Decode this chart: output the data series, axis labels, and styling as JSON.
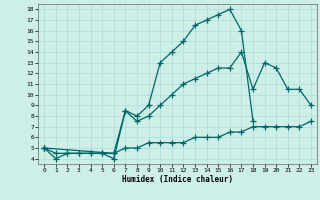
{
  "title": "",
  "xlabel": "Humidex (Indice chaleur)",
  "bg_color": "#ceeee8",
  "line_color": "#006666",
  "grid_color": "#aadddd",
  "xlim": [
    -0.5,
    23.5
  ],
  "ylim": [
    3.5,
    18.5
  ],
  "xticks": [
    0,
    1,
    2,
    3,
    4,
    5,
    6,
    7,
    8,
    9,
    10,
    11,
    12,
    13,
    14,
    15,
    16,
    17,
    18,
    19,
    20,
    21,
    22,
    23
  ],
  "yticks": [
    4,
    5,
    6,
    7,
    8,
    9,
    10,
    11,
    12,
    13,
    14,
    15,
    16,
    17,
    18
  ],
  "line1_x": [
    0,
    1,
    2,
    3,
    4,
    5,
    6,
    7,
    8,
    9,
    10,
    11,
    12,
    13,
    14,
    15,
    16,
    17,
    18
  ],
  "line1_y": [
    5,
    4,
    4.5,
    4.5,
    4.5,
    4.5,
    4,
    8.5,
    8,
    9,
    13,
    14,
    15,
    16.5,
    17,
    17.5,
    18,
    16,
    7.5
  ],
  "line2_x": [
    0,
    6,
    7,
    8,
    9,
    10,
    11,
    12,
    13,
    14,
    15,
    16,
    17,
    18,
    19,
    20,
    21,
    22,
    23
  ],
  "line2_y": [
    5,
    4.5,
    8.5,
    7.5,
    8,
    9,
    10,
    11,
    11.5,
    12,
    12.5,
    12.5,
    14,
    10.5,
    13,
    12.5,
    10.5,
    10.5,
    9
  ],
  "line3_x": [
    0,
    1,
    2,
    3,
    4,
    5,
    6,
    7,
    8,
    9,
    10,
    11,
    12,
    13,
    14,
    15,
    16,
    17,
    18,
    19,
    20,
    21,
    22,
    23
  ],
  "line3_y": [
    5,
    4.5,
    4.5,
    4.5,
    4.5,
    4.5,
    4.5,
    5,
    5,
    5.5,
    5.5,
    5.5,
    5.5,
    6,
    6,
    6,
    6.5,
    6.5,
    7,
    7,
    7,
    7,
    7,
    7.5
  ]
}
